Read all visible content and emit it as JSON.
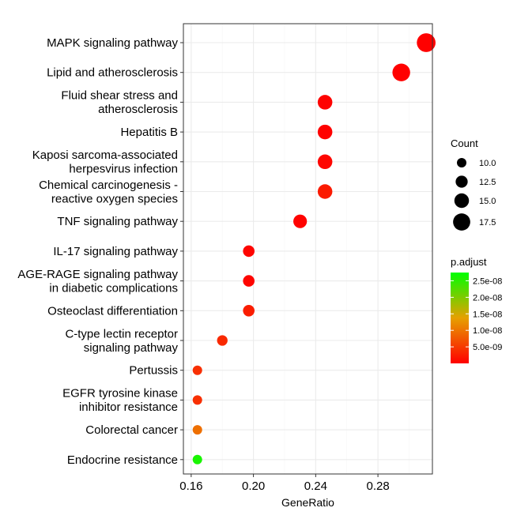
{
  "chart_data": {
    "type": "scatter",
    "title": "",
    "xlabel": "GeneRatio",
    "ylabel": "",
    "xlim": [
      0.155,
      0.315
    ],
    "xticks": [
      0.16,
      0.2,
      0.24,
      0.28
    ],
    "xtick_labels": [
      "0.16",
      "0.20",
      "0.24",
      "0.28"
    ],
    "grid": true,
    "legend_placement": "right",
    "categories": [
      [
        "MAPK signaling pathway"
      ],
      [
        "Lipid and atherosclerosis"
      ],
      [
        "Fluid shear stress and",
        "atherosclerosis"
      ],
      [
        "Hepatitis B"
      ],
      [
        "Kaposi sarcoma-associated",
        "herpesvirus infection"
      ],
      [
        "Chemical carcinogenesis -",
        "reactive oxygen species"
      ],
      [
        "TNF signaling pathway"
      ],
      [
        "IL-17 signaling pathway"
      ],
      [
        "AGE-RAGE signaling pathway",
        "in diabetic complications"
      ],
      [
        "Osteoclast differentiation"
      ],
      [
        "C-type lectin receptor",
        "signaling pathway"
      ],
      [
        "Pertussis"
      ],
      [
        "EGFR tyrosine kinase",
        "inhibitor resistance"
      ],
      [
        "Colorectal cancer"
      ],
      [
        "Endocrine resistance"
      ]
    ],
    "points": [
      {
        "gene_ratio": 0.311,
        "count": 19,
        "p_adjust": 1e-10
      },
      {
        "gene_ratio": 0.295,
        "count": 18,
        "p_adjust": 1e-10
      },
      {
        "gene_ratio": 0.246,
        "count": 15,
        "p_adjust": 3e-10
      },
      {
        "gene_ratio": 0.246,
        "count": 15,
        "p_adjust": 1e-10
      },
      {
        "gene_ratio": 0.246,
        "count": 15,
        "p_adjust": 5e-10
      },
      {
        "gene_ratio": 0.246,
        "count": 15,
        "p_adjust": 2.2e-09
      },
      {
        "gene_ratio": 0.23,
        "count": 14,
        "p_adjust": 2e-10
      },
      {
        "gene_ratio": 0.197,
        "count": 12,
        "p_adjust": 4e-10
      },
      {
        "gene_ratio": 0.197,
        "count": 12,
        "p_adjust": 4e-10
      },
      {
        "gene_ratio": 0.197,
        "count": 12,
        "p_adjust": 2.5e-09
      },
      {
        "gene_ratio": 0.18,
        "count": 11,
        "p_adjust": 3.5e-09
      },
      {
        "gene_ratio": 0.164,
        "count": 10,
        "p_adjust": 4e-09
      },
      {
        "gene_ratio": 0.164,
        "count": 10,
        "p_adjust": 4e-09
      },
      {
        "gene_ratio": 0.164,
        "count": 10,
        "p_adjust": 9.5e-09
      },
      {
        "gene_ratio": 0.164,
        "count": 10,
        "p_adjust": 2.6e-08
      }
    ],
    "size_legend": {
      "title": "Count",
      "values": [
        10,
        12.5,
        15,
        17.5
      ],
      "labels": [
        "10.0",
        "12.5",
        "15.0",
        "17.5"
      ]
    },
    "color_legend": {
      "title": "p.adjust",
      "range": [
        0,
        2.75e-08
      ],
      "ticks": [
        2.5e-08,
        2e-08,
        1.5e-08,
        1e-08,
        5e-09
      ],
      "labels": [
        "2.5e-08",
        "2.0e-08",
        "1.5e-08",
        "1.0e-08",
        "5.0e-09"
      ],
      "color_low": "#FF0000",
      "color_mid": "#E6A000",
      "color_high": "#00FF00"
    },
    "colors": {
      "panel_border": "#333333",
      "grid_major": "#EBEBEB",
      "grid_minor": "#F5F5F5",
      "text": "#000000",
      "tick_text": "#4D4D4D"
    }
  }
}
